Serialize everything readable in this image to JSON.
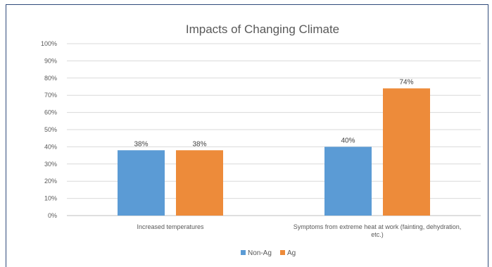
{
  "chart_data": {
    "type": "bar",
    "title": "Impacts of Changing Climate",
    "categories": [
      [
        "Increased temperatures"
      ],
      [
        "Symptoms from extreme heat at work (fainting, dehydration,",
        "etc.)"
      ]
    ],
    "series": [
      {
        "name": "Non-Ag",
        "values": [
          38,
          40
        ],
        "labels": [
          "38%",
          "40%"
        ],
        "color": "#5b9bd5"
      },
      {
        "name": "Ag",
        "values": [
          38,
          74
        ],
        "labels": [
          "38%",
          "74%"
        ],
        "color": "#ed8b3a"
      }
    ],
    "ylim": [
      0,
      100
    ],
    "yticks": [
      "0%",
      "10%",
      "20%",
      "30%",
      "40%",
      "50%",
      "60%",
      "70%",
      "80%",
      "90%",
      "100%"
    ],
    "grid": true,
    "legend": "bottom-center",
    "colors": {
      "gridline": "#d9d9d9",
      "axis": "#bfbfbf",
      "frame": "#2f4a7a"
    }
  }
}
